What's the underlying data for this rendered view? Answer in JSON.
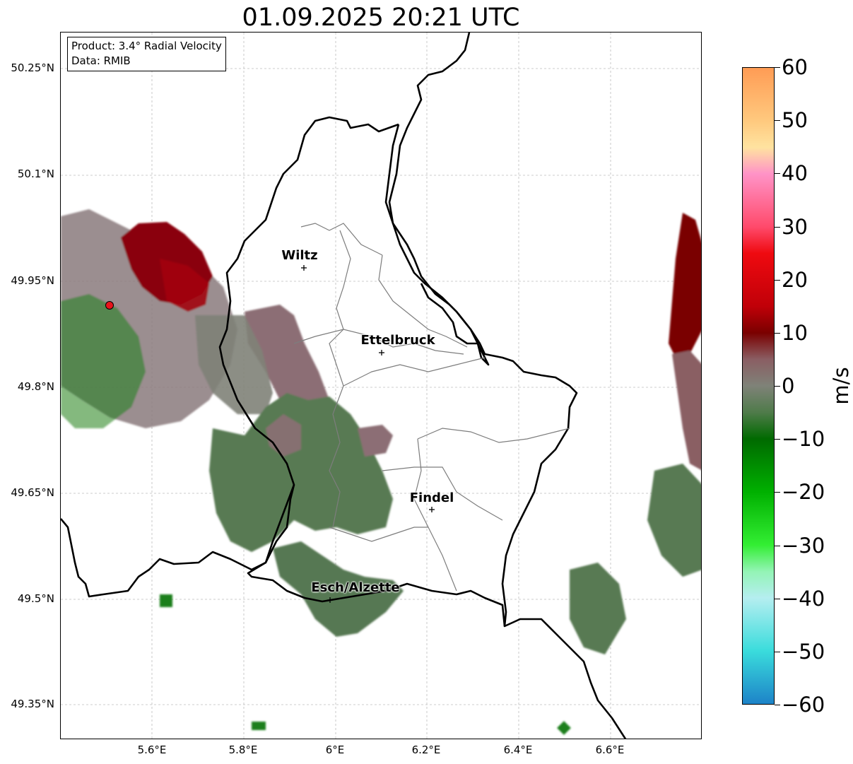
{
  "title": "01.09.2025 20:21 UTC",
  "info_box": {
    "product": "Product: 3.4° Radial Velocity",
    "data": "Data: RMIB"
  },
  "axes": {
    "lat_labels": [
      "50.25°N",
      "50.1°N",
      "49.95°N",
      "49.8°N",
      "49.65°N",
      "49.5°N",
      "49.35°N"
    ],
    "lon_labels": [
      "5.6°E",
      "5.8°E",
      "6°E",
      "6.2°E",
      "6.4°E",
      "6.6°E"
    ],
    "lon_range": [
      5.4,
      6.8
    ],
    "lat_range": [
      49.3,
      50.3
    ]
  },
  "radar_site": {
    "lon": 5.505,
    "lat": 49.915,
    "color": "#e8141b"
  },
  "cities": [
    {
      "name": "Wiltz",
      "lon": 5.93,
      "lat": 49.967
    },
    {
      "name": "Ettelbruck",
      "lon": 6.1,
      "lat": 49.847
    },
    {
      "name": "Findel",
      "lon": 6.21,
      "lat": 49.625
    },
    {
      "name": "Esch/Alzette",
      "lon": 5.985,
      "lat": 49.498
    }
  ],
  "colorbar": {
    "unit": "m/s",
    "min": -60,
    "max": 60,
    "tick_values": [
      60,
      50,
      40,
      30,
      20,
      10,
      0,
      -10,
      -20,
      -30,
      -40,
      -50,
      -60
    ],
    "tick_labels": [
      "60",
      "50",
      "40",
      "30",
      "20",
      "10",
      "0",
      "−10",
      "−20",
      "−30",
      "−40",
      "−50",
      "−60"
    ],
    "colors": {
      "v60": "#ff9c55",
      "v50": "#ffc97e",
      "v45": "#ffe3a0",
      "v40": "#ff93c7",
      "v30": "#ff4a6b",
      "v25": "#ef0a10",
      "v15": "#c00008",
      "v10": "#7a0000",
      "v5": "#8a5e63",
      "v0": "#7f8278",
      "vm5": "#4f7b4a",
      "vm10": "#006a00",
      "vm20": "#00b000",
      "vm30": "#33ee33",
      "vm35": "#93f4b5",
      "vm40": "#b5eef0",
      "vm50": "#3adcdc",
      "vm60": "#1d83c8"
    }
  }
}
